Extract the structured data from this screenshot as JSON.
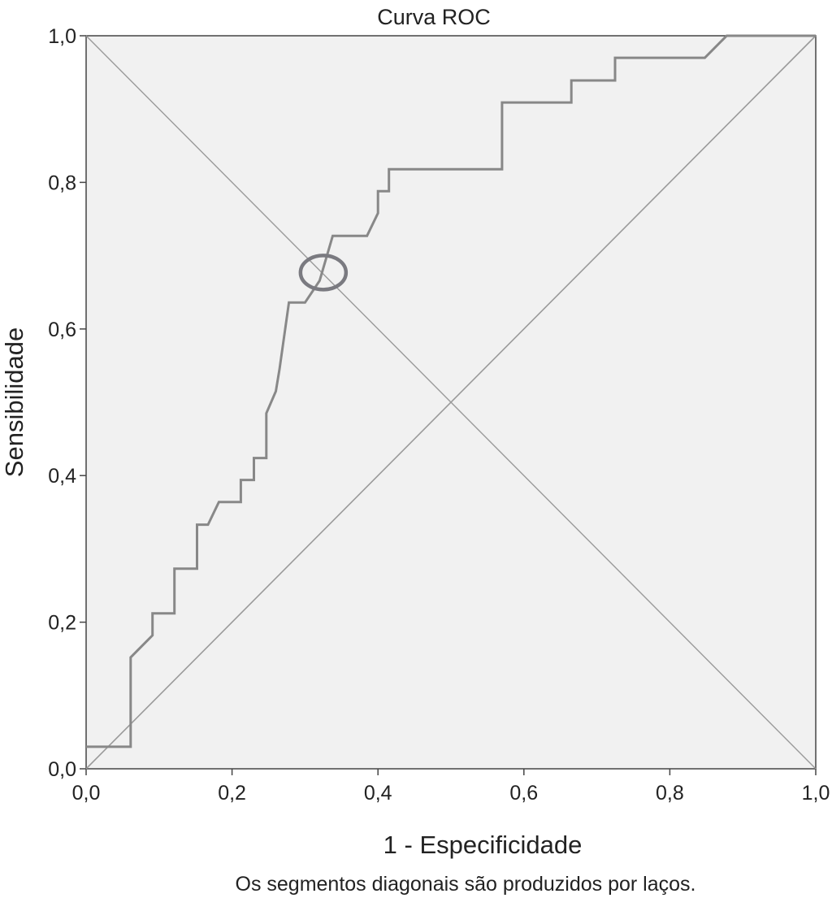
{
  "chart_data": {
    "type": "line",
    "title": "Curva ROC",
    "xlabel": "1 - Especificidade",
    "ylabel": "Sensibilidade",
    "xlim": [
      0,
      1
    ],
    "ylim": [
      0,
      1
    ],
    "xticks": [
      "0,0",
      "0,2",
      "0,4",
      "0,6",
      "0,8",
      "1,0"
    ],
    "yticks": [
      "0,0",
      "0,2",
      "0,4",
      "0,6",
      "0,8",
      "1,0"
    ],
    "grid": false,
    "footnote": "Os segmentos diagonais são produzidos por laços.",
    "colors": {
      "plot_background": "#f1f1f1",
      "curve": "#888888",
      "reference": "#9a9a9a",
      "marker": "#7a7a80"
    },
    "series": [
      {
        "x": [
          0.0,
          0.061,
          0.061,
          0.091,
          0.091,
          0.121,
          0.121,
          0.152,
          0.152,
          0.167,
          0.182,
          0.212,
          0.212,
          0.23,
          0.23,
          0.247,
          0.247,
          0.26,
          0.265,
          0.278,
          0.3,
          0.32,
          0.338,
          0.385,
          0.4,
          0.4,
          0.415,
          0.415,
          0.57,
          0.57,
          0.665,
          0.665,
          0.725,
          0.725,
          0.848,
          0.878,
          1.0
        ],
        "y": [
          0.03,
          0.03,
          0.152,
          0.182,
          0.212,
          0.212,
          0.273,
          0.273,
          0.333,
          0.333,
          0.364,
          0.364,
          0.394,
          0.394,
          0.424,
          0.424,
          0.485,
          0.515,
          0.545,
          0.636,
          0.636,
          0.666,
          0.727,
          0.727,
          0.758,
          0.788,
          0.788,
          0.818,
          0.818,
          0.909,
          0.909,
          0.939,
          0.939,
          0.97,
          0.97,
          1.0,
          1.0
        ]
      }
    ],
    "reference_lines": [
      {
        "x": [
          0,
          1
        ],
        "y": [
          0,
          1
        ]
      },
      {
        "x": [
          0,
          1
        ],
        "y": [
          1,
          0
        ]
      }
    ],
    "annotations": [
      {
        "type": "circle-marker",
        "x": 0.325,
        "y": 0.677
      }
    ]
  }
}
